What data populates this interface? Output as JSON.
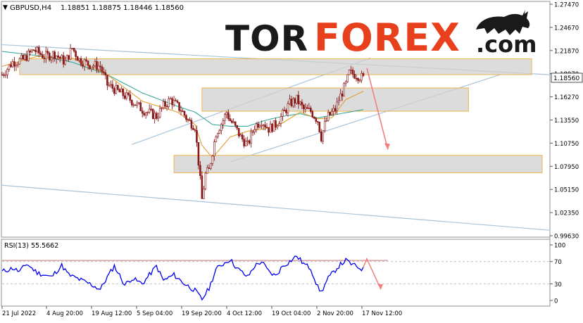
{
  "header": {
    "symbol_label": "GBPUSD,H4",
    "ohlc_text": "1.18851 1.18875 1.18446 1.18560",
    "dropdown_glyph": "▼"
  },
  "logo": {
    "part1": "TOR",
    "part2": "FOREX",
    "suffix": ".com",
    "color_dark": "#1a1a1a",
    "color_accent": "#e8401c"
  },
  "colors": {
    "candle": "#8b1a1a",
    "ma_fast": "#e0a030",
    "ma_slow": "#3aaa9a",
    "rsi_line": "#0000ee",
    "trend_lines": "#a7c4da",
    "zone_fill": "#d0d0d0",
    "zone_border": "#f0b450",
    "forecast_arrow": "#f08080",
    "rsi_level_line": "#c87070",
    "current_price_bg": "#ffffff"
  },
  "chart_data": [
    {
      "type": "candlestick",
      "symbol": "GBPUSD",
      "timeframe": "H4",
      "ylim": [
        0.9963,
        1.2747
      ],
      "y_ticks": [
        "1.27470",
        "1.24670",
        "1.21870",
        "1.18970",
        "1.16270",
        "1.13550",
        "1.10750",
        "1.07950",
        "1.05150",
        "1.02350",
        "0.99630"
      ],
      "current_price_label": "1.18560",
      "last_close": 1.1856,
      "x_ticks": [
        "21 Jul 2022",
        "4 Aug 20:00",
        "19 Aug 12:00",
        "5 Sep 04:00",
        "19 Sep 20:00",
        "4 Oct 12:00",
        "19 Oct 04:00",
        "2 Nov 20:00",
        "17 Nov 12:00"
      ],
      "close_path": [
        [
          0,
          1.19
        ],
        [
          3,
          1.205
        ],
        [
          6,
          1.208
        ],
        [
          9,
          1.22
        ],
        [
          12,
          1.212
        ],
        [
          15,
          1.215
        ],
        [
          18,
          1.205
        ],
        [
          20,
          1.222
        ],
        [
          22,
          1.208
        ],
        [
          25,
          1.202
        ],
        [
          28,
          1.2
        ],
        [
          30,
          1.178
        ],
        [
          33,
          1.17
        ],
        [
          36,
          1.162
        ],
        [
          40,
          1.148
        ],
        [
          44,
          1.14
        ],
        [
          46,
          1.152
        ],
        [
          48,
          1.16
        ],
        [
          51,
          1.148
        ],
        [
          53,
          1.135
        ],
        [
          55,
          1.128
        ],
        [
          56,
          1.085
        ],
        [
          57,
          1.04
        ],
        [
          58,
          1.07
        ],
        [
          59,
          1.075
        ],
        [
          61,
          1.12
        ],
        [
          63,
          1.135
        ],
        [
          64,
          1.145
        ],
        [
          65,
          1.135
        ],
        [
          66,
          1.13
        ],
        [
          68,
          1.115
        ],
        [
          70,
          1.105
        ],
        [
          72,
          1.128
        ],
        [
          74,
          1.135
        ],
        [
          76,
          1.125
        ],
        [
          78,
          1.13
        ],
        [
          80,
          1.142
        ],
        [
          82,
          1.155
        ],
        [
          84,
          1.16
        ],
        [
          86,
          1.148
        ],
        [
          88,
          1.146
        ],
        [
          90,
          1.135
        ],
        [
          91,
          1.115
        ],
        [
          92,
          1.13
        ],
        [
          93,
          1.14
        ],
        [
          95,
          1.148
        ],
        [
          96,
          1.16
        ],
        [
          98,
          1.178
        ],
        [
          99,
          1.192
        ],
        [
          101,
          1.19
        ],
        [
          103,
          1.1856
        ]
      ],
      "ma_fast_path": [
        [
          0,
          1.2
        ],
        [
          10,
          1.212
        ],
        [
          20,
          1.21
        ],
        [
          30,
          1.19
        ],
        [
          40,
          1.158
        ],
        [
          50,
          1.145
        ],
        [
          55,
          1.13
        ],
        [
          57,
          1.105
        ],
        [
          60,
          1.09
        ],
        [
          65,
          1.115
        ],
        [
          70,
          1.122
        ],
        [
          75,
          1.125
        ],
        [
          80,
          1.132
        ],
        [
          85,
          1.145
        ],
        [
          90,
          1.137
        ],
        [
          94,
          1.138
        ],
        [
          98,
          1.16
        ],
        [
          103,
          1.17
        ]
      ],
      "ma_slow_path": [
        [
          0,
          1.218
        ],
        [
          10,
          1.213
        ],
        [
          20,
          1.205
        ],
        [
          30,
          1.19
        ],
        [
          40,
          1.168
        ],
        [
          50,
          1.152
        ],
        [
          55,
          1.145
        ],
        [
          60,
          1.13
        ],
        [
          65,
          1.128
        ],
        [
          70,
          1.128
        ],
        [
          75,
          1.135
        ],
        [
          80,
          1.14
        ],
        [
          85,
          1.143
        ],
        [
          90,
          1.138
        ],
        [
          95,
          1.142
        ],
        [
          103,
          1.148
        ]
      ],
      "trend_lines": [
        [
          [
            0,
            1.226
          ],
          [
            156,
            1.19
          ]
        ],
        [
          [
            37,
            1.106
          ],
          [
            105,
            1.21
          ]
        ],
        [
          [
            65,
            1.085
          ],
          [
            142,
            1.19
          ]
        ],
        [
          [
            0,
            1.057
          ],
          [
            156,
            1.003
          ]
        ]
      ],
      "zones": [
        [
          5,
          151,
          1.19,
          1.209
        ],
        [
          57,
          133,
          1.146,
          1.174
        ],
        [
          49,
          154,
          1.072,
          1.093
        ]
      ],
      "forecast": [
        [
          104,
          1.198
        ],
        [
          110,
          1.1
        ]
      ]
    },
    {
      "type": "line",
      "indicator_label": "RSI(13) 55.5662",
      "ylim": [
        0,
        100
      ],
      "y_ticks": [
        "100",
        "70",
        "30",
        "0"
      ],
      "levels": [
        30,
        70
      ],
      "rsi_path": [
        [
          0,
          52
        ],
        [
          3,
          58
        ],
        [
          5,
          52
        ],
        [
          7,
          66
        ],
        [
          10,
          50
        ],
        [
          14,
          42
        ],
        [
          17,
          63
        ],
        [
          19,
          46
        ],
        [
          22,
          38
        ],
        [
          25,
          30
        ],
        [
          28,
          20
        ],
        [
          30,
          42
        ],
        [
          32,
          62
        ],
        [
          35,
          28
        ],
        [
          37,
          40
        ],
        [
          40,
          30
        ],
        [
          44,
          62
        ],
        [
          46,
          36
        ],
        [
          49,
          46
        ],
        [
          52,
          30
        ],
        [
          55,
          18
        ],
        [
          56,
          10
        ],
        [
          57,
          2
        ],
        [
          59,
          22
        ],
        [
          61,
          56
        ],
        [
          63,
          66
        ],
        [
          65,
          74
        ],
        [
          67,
          58
        ],
        [
          70,
          42
        ],
        [
          72,
          62
        ],
        [
          74,
          70
        ],
        [
          76,
          52
        ],
        [
          78,
          44
        ],
        [
          80,
          62
        ],
        [
          82,
          70
        ],
        [
          84,
          80
        ],
        [
          86,
          66
        ],
        [
          88,
          58
        ],
        [
          90,
          24
        ],
        [
          91,
          15
        ],
        [
          93,
          40
        ],
        [
          96,
          62
        ],
        [
          98,
          72
        ],
        [
          100,
          64
        ],
        [
          103,
          56
        ]
      ],
      "forecast": [
        [
          103,
          60
        ],
        [
          104,
          75
        ],
        [
          108,
          20
        ]
      ]
    }
  ]
}
